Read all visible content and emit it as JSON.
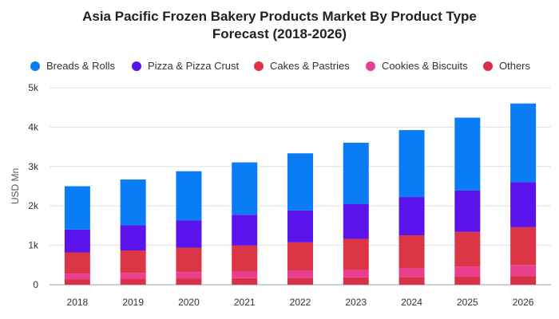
{
  "title": {
    "line1": "Asia Pacific Frozen Bakery Products Market By Product Type",
    "line2": "Forecast (2018-2026)"
  },
  "chart_data": {
    "type": "bar",
    "stacked": true,
    "title": "Asia Pacific Frozen Bakery Products Market By Product Type Forecast (2018-2026)",
    "xlabel": "",
    "ylabel": "USD Mn",
    "ylim": [
      0,
      5000
    ],
    "yticks": [
      0,
      1000,
      2000,
      3000,
      4000,
      5000
    ],
    "ytick_labels": [
      "0",
      "1k",
      "2k",
      "3k",
      "4k",
      "5k"
    ],
    "grid": true,
    "legend_position": "top",
    "categories": [
      "2018",
      "2019",
      "2020",
      "2021",
      "2022",
      "2023",
      "2024",
      "2025",
      "2026"
    ],
    "series": [
      {
        "name": "Others",
        "color": "#d9304a",
        "values": [
          140,
          150,
          160,
          165,
          175,
          185,
          195,
          210,
          220
        ]
      },
      {
        "name": "Cookies & Biscuits",
        "color": "#e8408f",
        "values": [
          140,
          150,
          160,
          170,
          190,
          200,
          230,
          250,
          280
        ]
      },
      {
        "name": "Cakes & Pastries",
        "color": "#dc3545",
        "values": [
          540,
          570,
          620,
          660,
          710,
          780,
          830,
          880,
          960
        ]
      },
      {
        "name": "Pizza & Pizza Crust",
        "color": "#5b13ec",
        "values": [
          580,
          640,
          690,
          780,
          810,
          880,
          970,
          1050,
          1140
        ]
      },
      {
        "name": "Breads & Rolls",
        "color": "#0a7cf5",
        "values": [
          1100,
          1160,
          1250,
          1330,
          1450,
          1560,
          1700,
          1850,
          2000
        ]
      }
    ]
  },
  "legend": [
    {
      "label": "Breads & Rolls",
      "color": "#0a7cf5"
    },
    {
      "label": "Pizza & Pizza Crust",
      "color": "#5b13ec"
    },
    {
      "label": "Cakes & Pastries",
      "color": "#dc3545"
    },
    {
      "label": "Cookies & Biscuits",
      "color": "#e8408f"
    },
    {
      "label": "Others",
      "color": "#d9304a"
    }
  ]
}
